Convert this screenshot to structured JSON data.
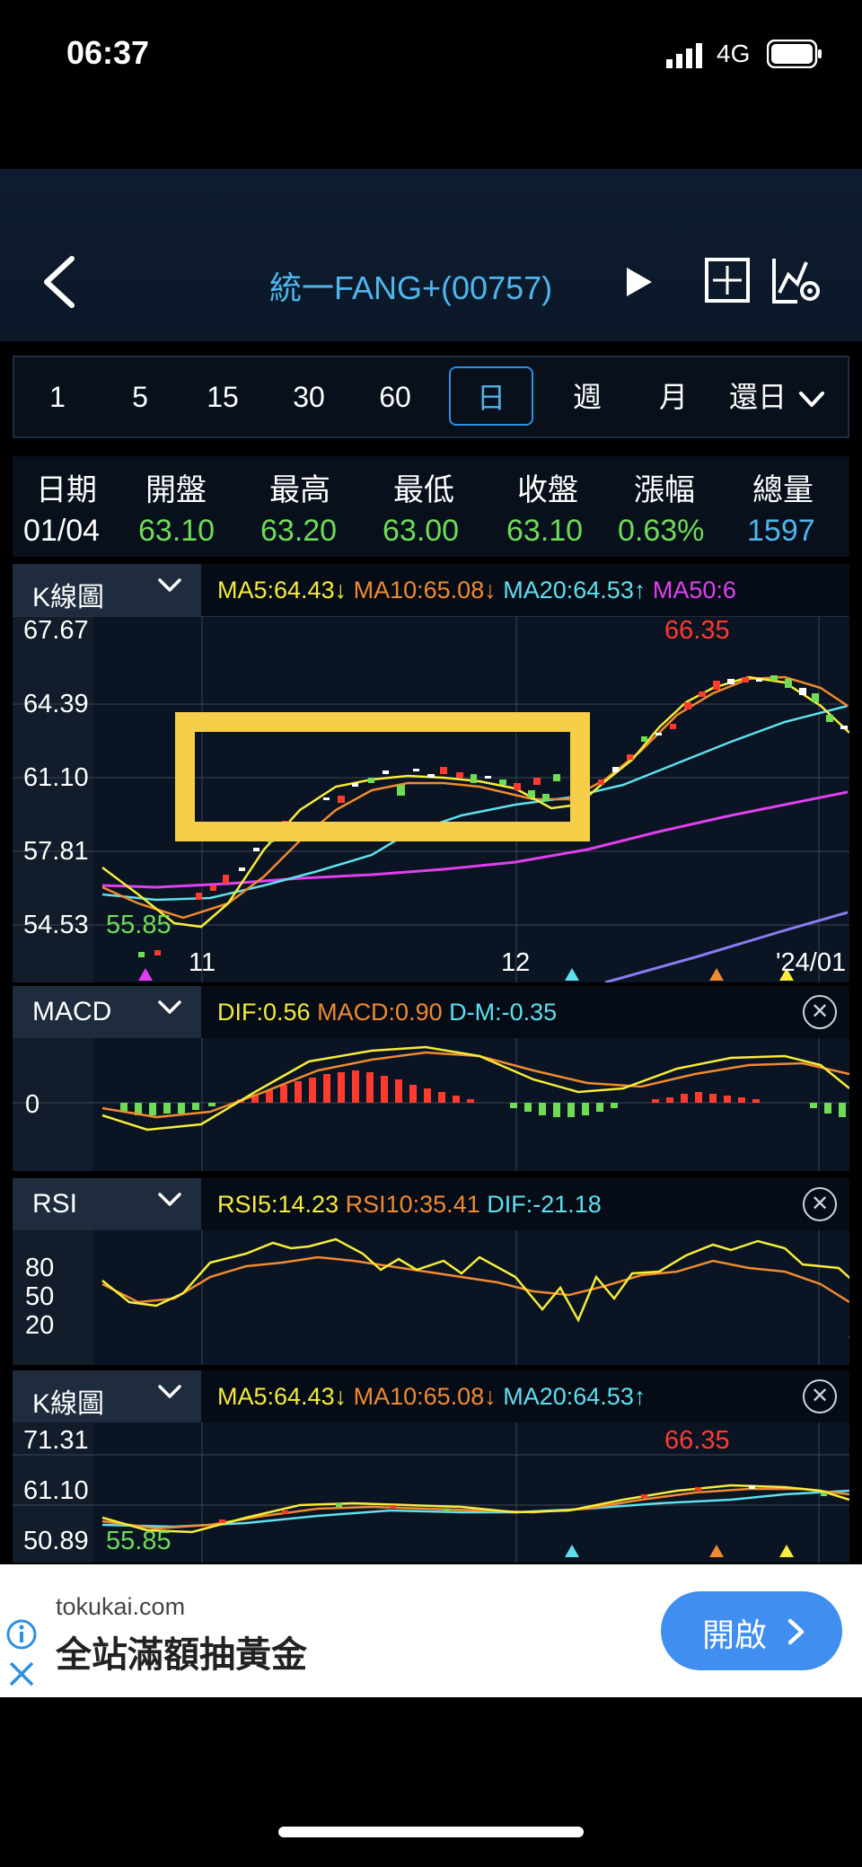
{
  "status_bar": {
    "time": "06:37",
    "network": "4G"
  },
  "header": {
    "title": "統一FANG+(00757)",
    "back_icon": "chevron-left-icon",
    "play_icon": "play-icon",
    "crosshair_icon": "crosshair-icon",
    "settings_icon": "chart-settings-icon"
  },
  "intervals": [
    "1",
    "5",
    "15",
    "30",
    "60",
    "日",
    "週",
    "月"
  ],
  "selected_interval": "日",
  "adjust": {
    "label": "還日"
  },
  "quote": {
    "headers": [
      "日期",
      "開盤",
      "最高",
      "最低",
      "收盤",
      "漲幅",
      "總量"
    ],
    "values": [
      "01/04",
      "63.10",
      "63.20",
      "63.00",
      "63.10",
      "0.63%",
      "1597"
    ],
    "value_colors": [
      "#ffffff",
      "#6fdc56",
      "#6fdc56",
      "#6fdc56",
      "#6fdc56",
      "#6fdc56",
      "#4fb5ec"
    ]
  },
  "kline_panel": {
    "name": "K線圖",
    "legend": [
      {
        "text": "MA5:64.43↓",
        "color": "#f6ec3a"
      },
      {
        "text": "MA10:65.08↓",
        "color": "#f08a30"
      },
      {
        "text": "MA20:64.53↑",
        "color": "#5ee0f0"
      },
      {
        "text": "MA50:6",
        "color": "#e040f0"
      }
    ],
    "y_labels": [
      "67.67",
      "64.39",
      "61.10",
      "57.81",
      "54.53"
    ],
    "high_label": "66.35",
    "low_label": "55.85",
    "x_labels": [
      "11",
      "12",
      "'24/01"
    ]
  },
  "macd_panel": {
    "name": "MACD",
    "legend": [
      {
        "text": "DIF:0.56",
        "color": "#f6ec3a"
      },
      {
        "text": "MACD:0.90",
        "color": "#f08a30"
      },
      {
        "text": "D-M:-0.35",
        "color": "#5ee0f0"
      }
    ],
    "zero_label": "0"
  },
  "rsi_panel": {
    "name": "RSI",
    "legend": [
      {
        "text": "RSI5:14.23",
        "color": "#f6ec3a"
      },
      {
        "text": "RSI10:35.41",
        "color": "#f08a30"
      },
      {
        "text": "DIF:-21.18",
        "color": "#5ee0f0"
      }
    ],
    "y_labels": [
      "80",
      "50",
      "20"
    ]
  },
  "kline_panel_2": {
    "name": "K線圖",
    "legend": [
      {
        "text": "MA5:64.43↓",
        "color": "#f6ec3a"
      },
      {
        "text": "MA10:65.08↓",
        "color": "#f08a30"
      },
      {
        "text": "MA20:64.53↑",
        "color": "#5ee0f0"
      }
    ],
    "y_labels": [
      "71.31",
      "61.10",
      "50.89"
    ],
    "high_label": "66.35",
    "low_label": "55.85"
  },
  "ad": {
    "domain": "tokukai.com",
    "text": "全站滿額抽黃金",
    "button": "開啟",
    "info_icon": "info-icon",
    "close_icon": "close-icon"
  }
}
